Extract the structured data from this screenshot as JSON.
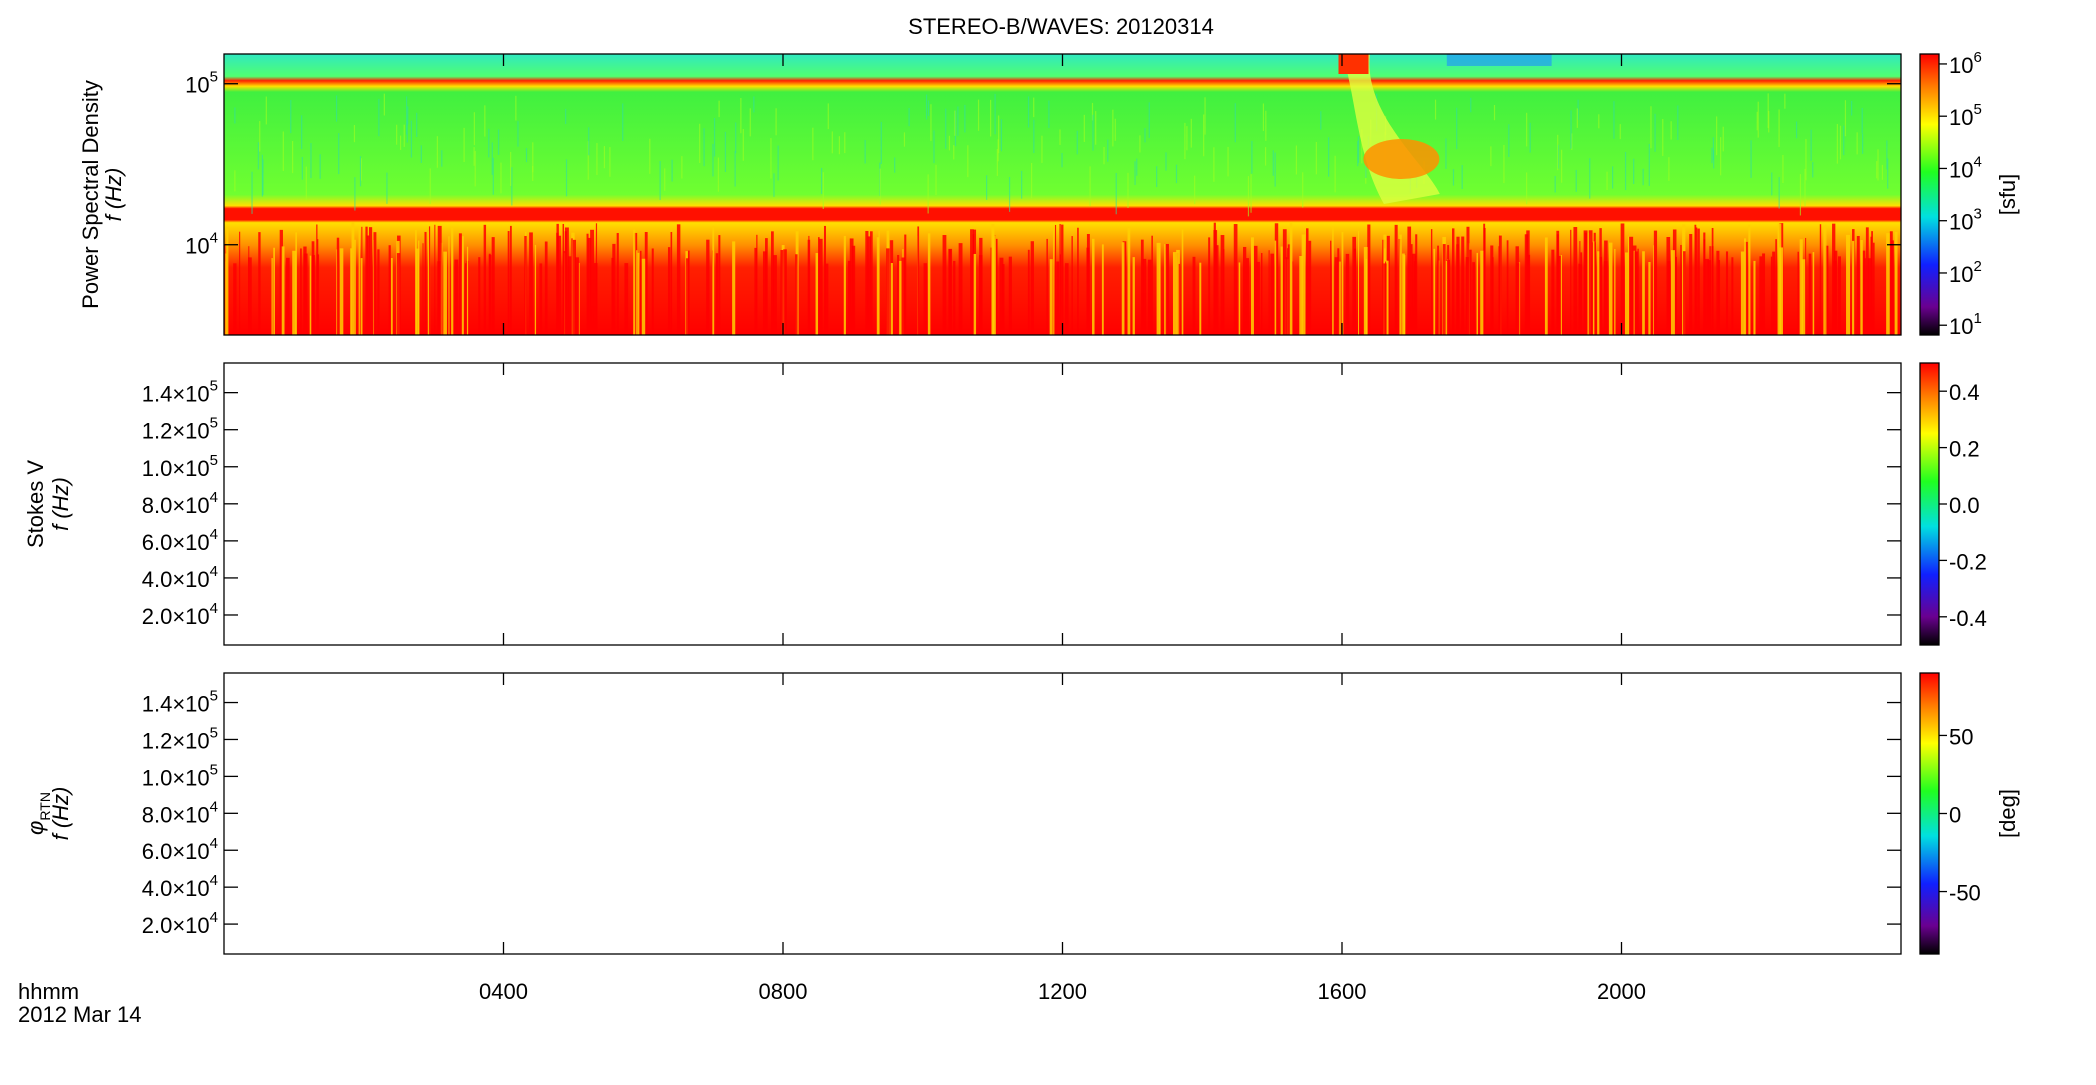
{
  "chart_data": [
    {
      "type": "spectrogram",
      "title": "STEREO-B/WAVES: 20120314",
      "quantity": "Power Spectral Density",
      "ylabel": "f (Hz)",
      "ylog": true,
      "ylim": [
        2750,
        153000
      ],
      "yticks": [
        {
          "value": 10000,
          "label": "10",
          "exponent": "4"
        },
        {
          "value": 100000,
          "label": "10",
          "exponent": "5"
        }
      ],
      "colorbar": {
        "label": "[sfu]",
        "log": true,
        "lim": [
          6.5,
          1550000
        ],
        "ticks": [
          {
            "value": 10,
            "label": "10",
            "exponent": "1"
          },
          {
            "value": 100,
            "label": "10",
            "exponent": "2"
          },
          {
            "value": 1000,
            "label": "10",
            "exponent": "3"
          },
          {
            "value": 10000,
            "label": "10",
            "exponent": "4"
          },
          {
            "value": 100000,
            "label": "10",
            "exponent": "5"
          },
          {
            "value": 1000000,
            "label": "10",
            "exponent": "6"
          }
        ]
      },
      "xlim": [
        0,
        24
      ]
    },
    {
      "type": "spectrogram",
      "quantity": "Stokes V",
      "ylabel": "f (Hz)",
      "ylog": false,
      "ylim": [
        3800,
        156000
      ],
      "yticks": [
        {
          "value": 20000,
          "label": "2.0×10",
          "exponent": "4"
        },
        {
          "value": 40000,
          "label": "4.0×10",
          "exponent": "4"
        },
        {
          "value": 60000,
          "label": "6.0×10",
          "exponent": "4"
        },
        {
          "value": 80000,
          "label": "8.0×10",
          "exponent": "4"
        },
        {
          "value": 100000,
          "label": "1.0×10",
          "exponent": "5"
        },
        {
          "value": 120000,
          "label": "1.2×10",
          "exponent": "5"
        },
        {
          "value": 140000,
          "label": "1.4×10",
          "exponent": "5"
        }
      ],
      "colorbar": {
        "log": false,
        "lim": [
          -0.5,
          0.5
        ],
        "ticks": [
          -0.4,
          -0.2,
          {
            "value": 0,
            "label": "0.0"
          },
          0.2,
          0.4
        ]
      },
      "xlim": [
        0,
        24
      ]
    },
    {
      "type": "spectrogram",
      "quantity": "φ",
      "quantity_subscript": "RTN",
      "ylabel": "f (Hz)",
      "ylog": false,
      "ylim": [
        3800,
        156000
      ],
      "yticks": [
        {
          "value": 20000,
          "label": "2.0×10",
          "exponent": "4"
        },
        {
          "value": 40000,
          "label": "4.0×10",
          "exponent": "4"
        },
        {
          "value": 60000,
          "label": "6.0×10",
          "exponent": "4"
        },
        {
          "value": 80000,
          "label": "8.0×10",
          "exponent": "4"
        },
        {
          "value": 100000,
          "label": "1.0×10",
          "exponent": "5"
        },
        {
          "value": 120000,
          "label": "1.2×10",
          "exponent": "5"
        },
        {
          "value": 140000,
          "label": "1.4×10",
          "exponent": "5"
        }
      ],
      "colorbar": {
        "label": "[deg]",
        "log": false,
        "lim": [
          -90,
          90
        ],
        "ticks": [
          -50,
          0,
          50
        ]
      },
      "xlim": [
        0,
        24
      ],
      "xlabel": "hhmm",
      "date_label": "2012 Mar 14",
      "xticks": [
        {
          "value": 4,
          "label": "0400"
        },
        {
          "value": 8,
          "label": "0800"
        },
        {
          "value": 12,
          "label": "1200"
        },
        {
          "value": 16,
          "label": "1600"
        },
        {
          "value": 20,
          "label": "2000"
        }
      ]
    }
  ]
}
